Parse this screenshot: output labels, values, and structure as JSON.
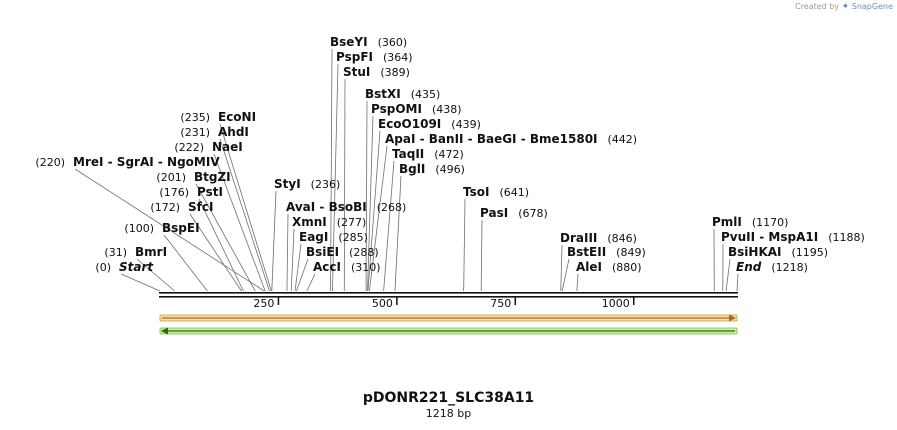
{
  "credit": {
    "prefix": "Created by",
    "brand": "SnapGene",
    "icon": "snapgene-logo-icon"
  },
  "plasmid": {
    "name": "pDONR221_SLC38A11",
    "size_label": "1218 bp",
    "length": 1218
  },
  "axis": {
    "ticks": [
      250,
      500,
      750,
      1000
    ]
  },
  "features": [
    {
      "name": "forward-feature",
      "direction": "forward",
      "start": 1,
      "end": 1218,
      "fill": "#f5deb3",
      "stroke": "#c89a2e",
      "arrow": "#b06a10"
    },
    {
      "name": "reverse-feature",
      "direction": "reverse",
      "start": 1,
      "end": 1218,
      "fill": "#c8ee9e",
      "stroke": "#7bc04a",
      "arrow": "#2a6e12"
    }
  ],
  "labels": [
    {
      "text": "BseYI",
      "pos": "(360)",
      "cut": 360
    },
    {
      "text": "PspFI",
      "pos": "(364)",
      "cut": 364
    },
    {
      "text": "StuI",
      "pos": "(389)",
      "cut": 389
    },
    {
      "text": "BstXI",
      "pos": "(435)",
      "cut": 435
    },
    {
      "text": "PspOMI",
      "pos": "(438)",
      "cut": 438
    },
    {
      "text": "EcoO109I",
      "pos": "(439)",
      "cut": 439
    },
    {
      "text": "ApaI  -  BanII  -  BaeGI  -  Bme1580I",
      "pos": "(442)",
      "cut": 442
    },
    {
      "text": "TaqII",
      "pos": "(472)",
      "cut": 472
    },
    {
      "text": "BglI",
      "pos": "(496)",
      "cut": 496
    },
    {
      "text": "TsoI",
      "pos": "(641)",
      "cut": 641
    },
    {
      "text": "PasI",
      "pos": "(678)",
      "cut": 678
    },
    {
      "text": "StyI",
      "pos": "(236)",
      "cut": 236
    },
    {
      "text": "AvaI  -  BsoBI",
      "pos": "(268)",
      "cut": 268
    },
    {
      "text": "XmnI",
      "pos": "(277)",
      "cut": 277
    },
    {
      "text": "EagI",
      "pos": "(285)",
      "cut": 285
    },
    {
      "text": "BsiEI",
      "pos": "(288)",
      "cut": 288
    },
    {
      "text": "AccI",
      "pos": "(310)",
      "cut": 310
    },
    {
      "text": "EcoNI",
      "pos": "(235)",
      "cut": 235
    },
    {
      "text": "AhdI",
      "pos": "(231)",
      "cut": 231
    },
    {
      "text": "NaeI",
      "pos": "(222)",
      "cut": 222
    },
    {
      "text": "MreI  -  SgrAI  -  NgoMIV",
      "pos": "(220)",
      "cut": 220
    },
    {
      "text": "BtgZI",
      "pos": "(201)",
      "cut": 201
    },
    {
      "text": "PstI",
      "pos": "(176)",
      "cut": 176
    },
    {
      "text": "SfcI",
      "pos": "(172)",
      "cut": 172
    },
    {
      "text": "BspEI",
      "pos": "(100)",
      "cut": 100
    },
    {
      "text": "BmrI",
      "pos": "(31)",
      "cut": 31
    },
    {
      "text": "Start",
      "pos": "(0)",
      "cut": 0,
      "italic": true
    },
    {
      "text": "DraIII",
      "pos": "(846)",
      "cut": 846
    },
    {
      "text": "BstEII",
      "pos": "(849)",
      "cut": 849
    },
    {
      "text": "AleI",
      "pos": "(880)",
      "cut": 880
    },
    {
      "text": "PmlI",
      "pos": "(1170)",
      "cut": 1170
    },
    {
      "text": "PvuII  -  MspA1I",
      "pos": "(1188)",
      "cut": 1188
    },
    {
      "text": "BsiHKAI",
      "pos": "(1195)",
      "cut": 1195
    },
    {
      "text": "End",
      "pos": "(1218)",
      "cut": 1218,
      "italic": true
    }
  ]
}
